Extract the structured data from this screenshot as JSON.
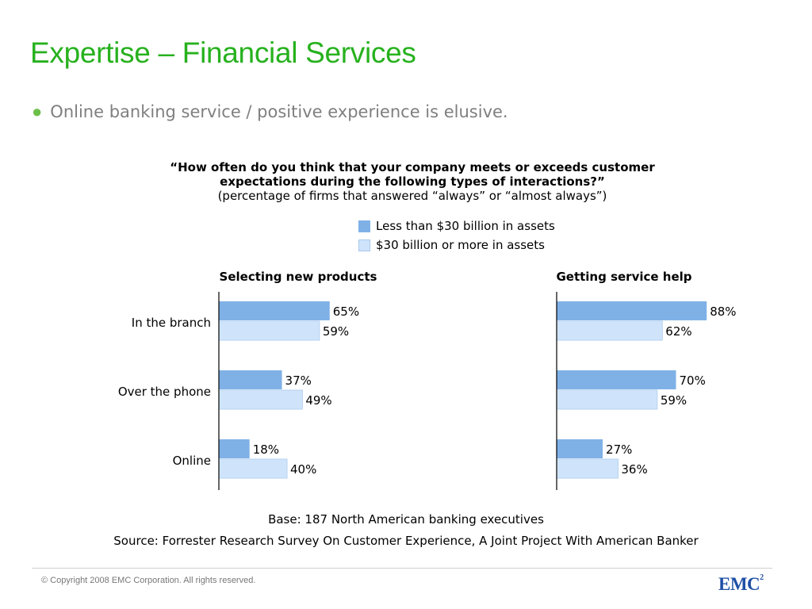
{
  "slide": {
    "title": "Expertise – Financial Services",
    "bullet": "Online banking service / positive experience is elusive."
  },
  "question": {
    "line1": "“How often do you think that your company meets or exceeds customer",
    "line2": "expectations during the following types of interactions?”",
    "line3": "(percentage of firms that answered “always” or “almost always”)"
  },
  "colors": {
    "title": "#27b11e",
    "bullet": "#6cc04a",
    "series_dark": "#7fb1e6",
    "series_light": "#cfe4fb"
  },
  "chart_data": {
    "type": "bar",
    "orientation": "horizontal",
    "categories": [
      "In the branch",
      "Over the phone",
      "Online"
    ],
    "legend": [
      "Less than $30 billion in assets",
      "$30 billion or more in assets"
    ],
    "legend_placement": "top",
    "value_format": "{v}%",
    "xlim": [
      0,
      100
    ],
    "grid": false,
    "panels": [
      {
        "title": "Selecting new products",
        "series": [
          {
            "name": "Less than $30 billion in assets",
            "values": [
              65,
              37,
              18
            ]
          },
          {
            "name": "$30 billion or more in assets",
            "values": [
              59,
              49,
              40
            ]
          }
        ]
      },
      {
        "title": "Getting service help",
        "series": [
          {
            "name": "Less than $30 billion in assets",
            "values": [
              88,
              70,
              27
            ]
          },
          {
            "name": "$30 billion or more in assets",
            "values": [
              62,
              59,
              36
            ]
          }
        ]
      }
    ]
  },
  "footer": {
    "base": "Base: 187 North American banking executives",
    "source": "Source: Forrester Research Survey On Customer Experience, A Joint Project With American Banker",
    "copyright": "© Copyright 2008 EMC Corporation. All rights reserved.",
    "logo_text": "EMC",
    "logo_sup": "2"
  }
}
